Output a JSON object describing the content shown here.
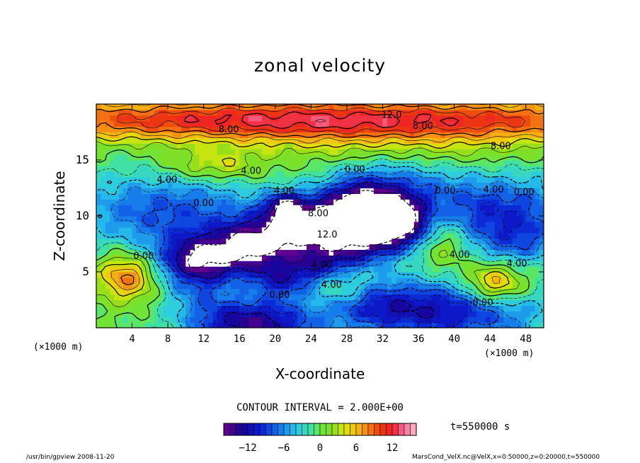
{
  "chart_data": {
    "type": "heatmap",
    "title": "zonal velocity",
    "xlabel": "X-coordinate",
    "ylabel": "Z-coordinate",
    "x_unit": "(×1000 m)",
    "y_unit": "(×1000 m)",
    "x_range": [
      0,
      50
    ],
    "y_range": [
      0,
      20
    ],
    "x_ticks": [
      "4",
      "8",
      "12",
      "16",
      "20",
      "24",
      "28",
      "32",
      "36",
      "40",
      "44",
      "48"
    ],
    "y_ticks": [
      "5",
      "10",
      "15"
    ],
    "x_tick_values": [
      4,
      8,
      12,
      16,
      20,
      24,
      28,
      32,
      36,
      40,
      44,
      48
    ],
    "y_tick_values": [
      5,
      10,
      15
    ],
    "contour_interval_text": "CONTOUR INTERVAL = 2.000E+00",
    "contour_interval": 2.0,
    "color_range": [
      -16,
      16
    ],
    "colorbar_ticks": [
      "−12",
      "−6",
      "0",
      "6",
      "12"
    ],
    "colorbar_tick_values": [
      -12,
      -6,
      0,
      6,
      12
    ],
    "contour_labels": [
      {
        "text": "12.0",
        "x": 33.0,
        "z": 19.0
      },
      {
        "text": "8.00",
        "x": 14.8,
        "z": 17.7
      },
      {
        "text": "8.00",
        "x": 36.5,
        "z": 18.0
      },
      {
        "text": "8.00",
        "x": 45.2,
        "z": 16.2
      },
      {
        "text": "4.00",
        "x": 17.3,
        "z": 14.0
      },
      {
        "text": "4.00",
        "x": 7.9,
        "z": 13.2
      },
      {
        "text": "0.00",
        "x": 28.9,
        "z": 14.1
      },
      {
        "text": "4.00",
        "x": 21.0,
        "z": 12.2
      },
      {
        "text": "0.00",
        "x": 12.0,
        "z": 11.1
      },
      {
        "text": "0.00",
        "x": 39.0,
        "z": 12.2
      },
      {
        "text": "4.00",
        "x": 44.4,
        "z": 12.3
      },
      {
        "text": "0.00",
        "x": 47.8,
        "z": 12.1
      },
      {
        "text": "8.00",
        "x": 24.8,
        "z": 10.2
      },
      {
        "text": "12.0",
        "x": 25.8,
        "z": 8.3
      },
      {
        "text": "0.00",
        "x": 5.3,
        "z": 6.4
      },
      {
        "text": "4.00",
        "x": 25.2,
        "z": 5.6
      },
      {
        "text": "4.00",
        "x": 40.6,
        "z": 6.5
      },
      {
        "text": "4.00",
        "x": 47.0,
        "z": 5.7
      },
      {
        "text": "4.00",
        "x": 26.3,
        "z": 3.8
      },
      {
        "text": "0.00",
        "x": 20.5,
        "z": 2.9
      },
      {
        "text": "0.00",
        "x": 43.2,
        "z": 2.2
      }
    ],
    "features": [
      {
        "kind": "jet",
        "sign": 1,
        "amp": 13,
        "x": 25,
        "z": 18.6,
        "sx": 30,
        "sz": 1.3
      },
      {
        "kind": "blob",
        "sign": 1,
        "amp": 3,
        "x": 34,
        "z": 16.0,
        "sx": 10,
        "sz": 1.3
      },
      {
        "kind": "blob",
        "sign": 1,
        "amp": 5,
        "x": 13,
        "z": 14.5,
        "sx": 4,
        "sz": 1.0
      },
      {
        "kind": "blob",
        "sign": -1,
        "amp": 8,
        "x": 8,
        "z": 10.5,
        "sx": 8,
        "sz": 2.5
      },
      {
        "kind": "blob",
        "sign": -1,
        "amp": 9,
        "x": 45,
        "z": 10.5,
        "sx": 7,
        "sz": 2.3
      },
      {
        "kind": "blob",
        "sign": -1,
        "amp": 8,
        "x": 33,
        "z": 11,
        "sx": 5,
        "sz": 3
      },
      {
        "kind": "band",
        "sign": -1,
        "amp": 16,
        "x1": 12,
        "z1": 6.0,
        "x2": 29,
        "z2": 10.5,
        "w": 1.7
      },
      {
        "kind": "band",
        "sign": -1,
        "amp": 10,
        "x1": 21,
        "z1": 4.5,
        "x2": 34,
        "z2": 9,
        "w": 1.4
      },
      {
        "kind": "blob",
        "sign": -1,
        "amp": 10,
        "x": 21,
        "z": 10.9,
        "sx": 1.5,
        "sz": 0.8
      },
      {
        "kind": "blob",
        "sign": 1,
        "amp": 8,
        "x": 38.3,
        "z": 8.4,
        "sx": 2.2,
        "sz": 2.0
      },
      {
        "kind": "blob",
        "sign": 1,
        "amp": 9,
        "x": 3.5,
        "z": 4.6,
        "sx": 2.2,
        "sz": 1.4
      },
      {
        "kind": "blob",
        "sign": 1,
        "amp": 10,
        "x": 44.5,
        "z": 3.9,
        "sx": 2.4,
        "sz": 1.3
      },
      {
        "kind": "blob",
        "sign": -1,
        "amp": 14,
        "x": 17.5,
        "z": 0.3,
        "sx": 5,
        "sz": 1.5
      },
      {
        "kind": "blob",
        "sign": -1,
        "amp": 11,
        "x": 40,
        "z": 1.5,
        "sx": 7,
        "sz": 2.0
      },
      {
        "kind": "blob",
        "sign": -1,
        "amp": 6,
        "x": 31,
        "z": 2.0,
        "sx": 4,
        "sz": 1.6
      },
      {
        "kind": "blob",
        "sign": -1,
        "amp": 5,
        "x": 47,
        "z": 7.5,
        "sx": 3,
        "sz": 1.5
      },
      {
        "kind": "blob",
        "sign": 1,
        "amp": 3,
        "x": 27.5,
        "z": 3.5,
        "sx": 2,
        "sz": 1.0
      },
      {
        "kind": "blob",
        "sign": -1,
        "amp": 3,
        "x": 12,
        "z": 2.5,
        "sx": 3,
        "sz": 1.2
      }
    ]
  },
  "footer": {
    "left": "/usr/bin/gpview  2008-11-20",
    "right": "MarsCond_VelX.nc@VelX,x=0:50000,z=0:20000,t=550000",
    "time": "t=550000 s"
  }
}
